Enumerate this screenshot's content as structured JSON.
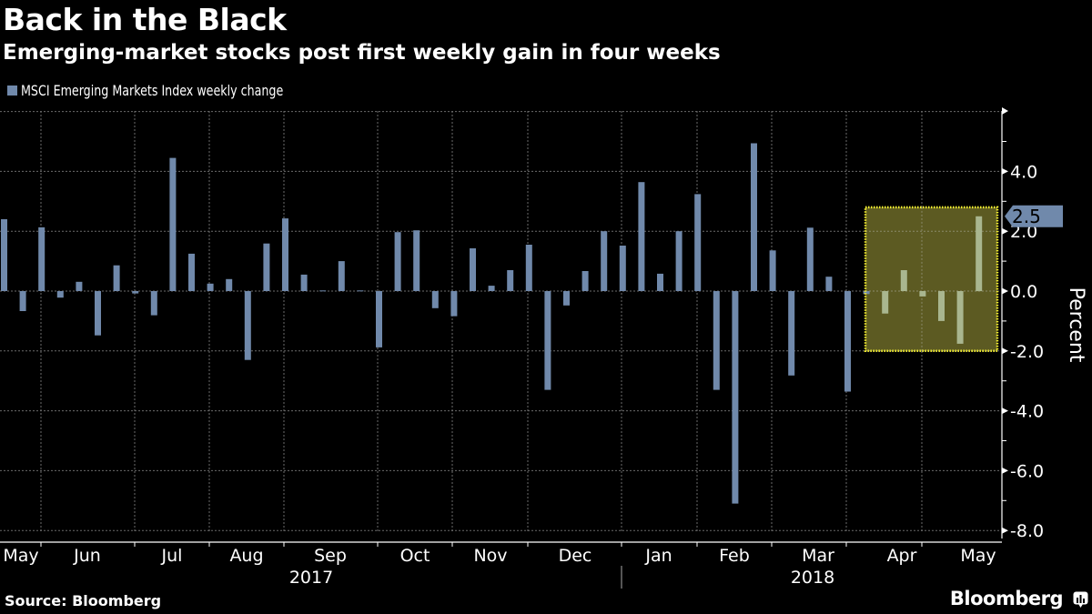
{
  "header": {
    "title": "Back in the Black",
    "subtitle": "Emerging-market stocks post first weekly gain in four weeks"
  },
  "footer": {
    "source": "Source: Bloomberg",
    "brand": "Bloomberg",
    "brand_icon": "bloomberg-chart-icon"
  },
  "colors": {
    "background": "#000000",
    "bar": "#7089ab",
    "highlight_fill": "#5c5a22",
    "highlight_border": "#f5f030",
    "highlight_bar": "#a9b68f",
    "grid": "#6b6b6b",
    "callout": "#7089ab"
  },
  "chart_data": {
    "type": "bar",
    "title": "Back in the Black",
    "subtitle": "Emerging-market stocks post first weekly gain in four weeks",
    "legend": [
      "MSCI Emerging Markets Index weekly change"
    ],
    "legend_position": "top-left",
    "ylabel": "Percent",
    "xlabel": "",
    "ylim": [
      -8.5,
      5.2
    ],
    "yticks": [
      4.0,
      2.0,
      0.0,
      -2.0,
      -4.0,
      -6.0,
      -8.0
    ],
    "ytick_labels": [
      "4.0",
      "2.0",
      "0.0",
      "-2.0",
      "-4.0",
      "-6.0",
      "-8.0"
    ],
    "y_axis_side": "right",
    "grid": true,
    "x_month_labels": [
      "May",
      "Jun",
      "Jul",
      "Aug",
      "Sep",
      "Oct",
      "Nov",
      "Dec",
      "Jan",
      "Feb",
      "Mar",
      "Apr",
      "May"
    ],
    "x_year_labels": [
      "2017",
      "2018"
    ],
    "last_value_callout": "2.5",
    "highlight": {
      "description": "last five weeks highlighted",
      "yrange": [
        -2.0,
        2.8
      ]
    },
    "series": [
      {
        "name": "MSCI Emerging Markets Index weekly change",
        "values": [
          2.4,
          -0.67,
          2.13,
          -0.22,
          0.31,
          -1.48,
          0.86,
          -0.08,
          -0.81,
          4.45,
          1.25,
          0.25,
          0.4,
          -2.3,
          1.59,
          2.43,
          0.55,
          0.02,
          1.0,
          0.02,
          -1.88,
          1.97,
          2.03,
          -0.57,
          -0.84,
          1.43,
          0.18,
          0.7,
          1.55,
          -3.3,
          -0.48,
          0.67,
          2.0,
          1.52,
          3.64,
          0.58,
          2.0,
          3.24,
          -3.3,
          -7.1,
          4.94,
          1.36,
          -2.82,
          2.12,
          0.48,
          -3.36,
          -0.1,
          -0.75,
          0.7,
          -0.18,
          -1.0,
          -1.76,
          2.5
        ]
      }
    ]
  }
}
